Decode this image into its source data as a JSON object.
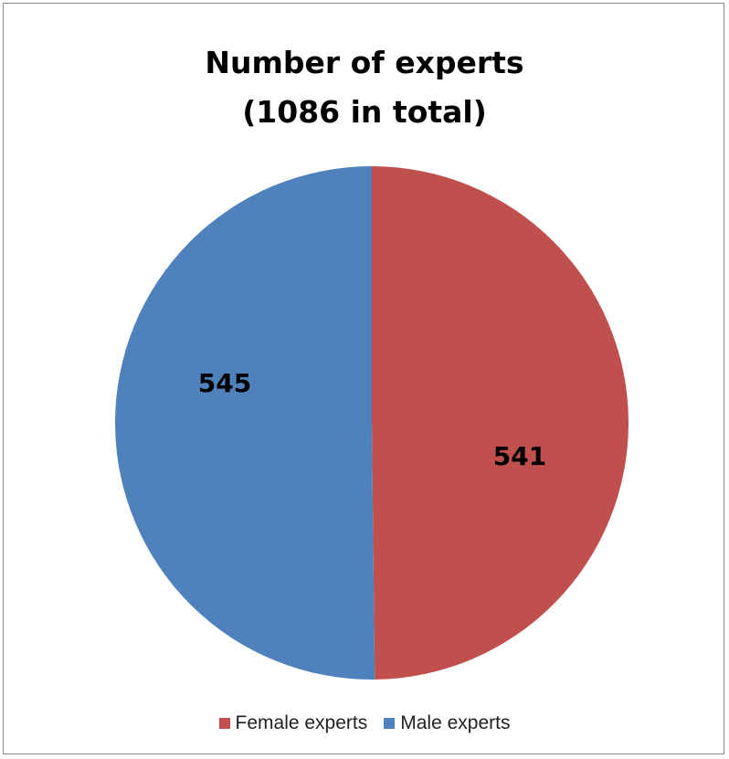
{
  "chart_data": {
    "type": "pie",
    "title_lines": [
      "Number of experts",
      "(1086 in total)"
    ],
    "slices": [
      {
        "name": "Female experts",
        "value": 541,
        "label": "541",
        "color": "#C0504D"
      },
      {
        "name": "Male experts",
        "value": 545,
        "label": "545",
        "color": "#4F81BD"
      }
    ],
    "start_direction": "top",
    "legend_position": "bottom"
  }
}
